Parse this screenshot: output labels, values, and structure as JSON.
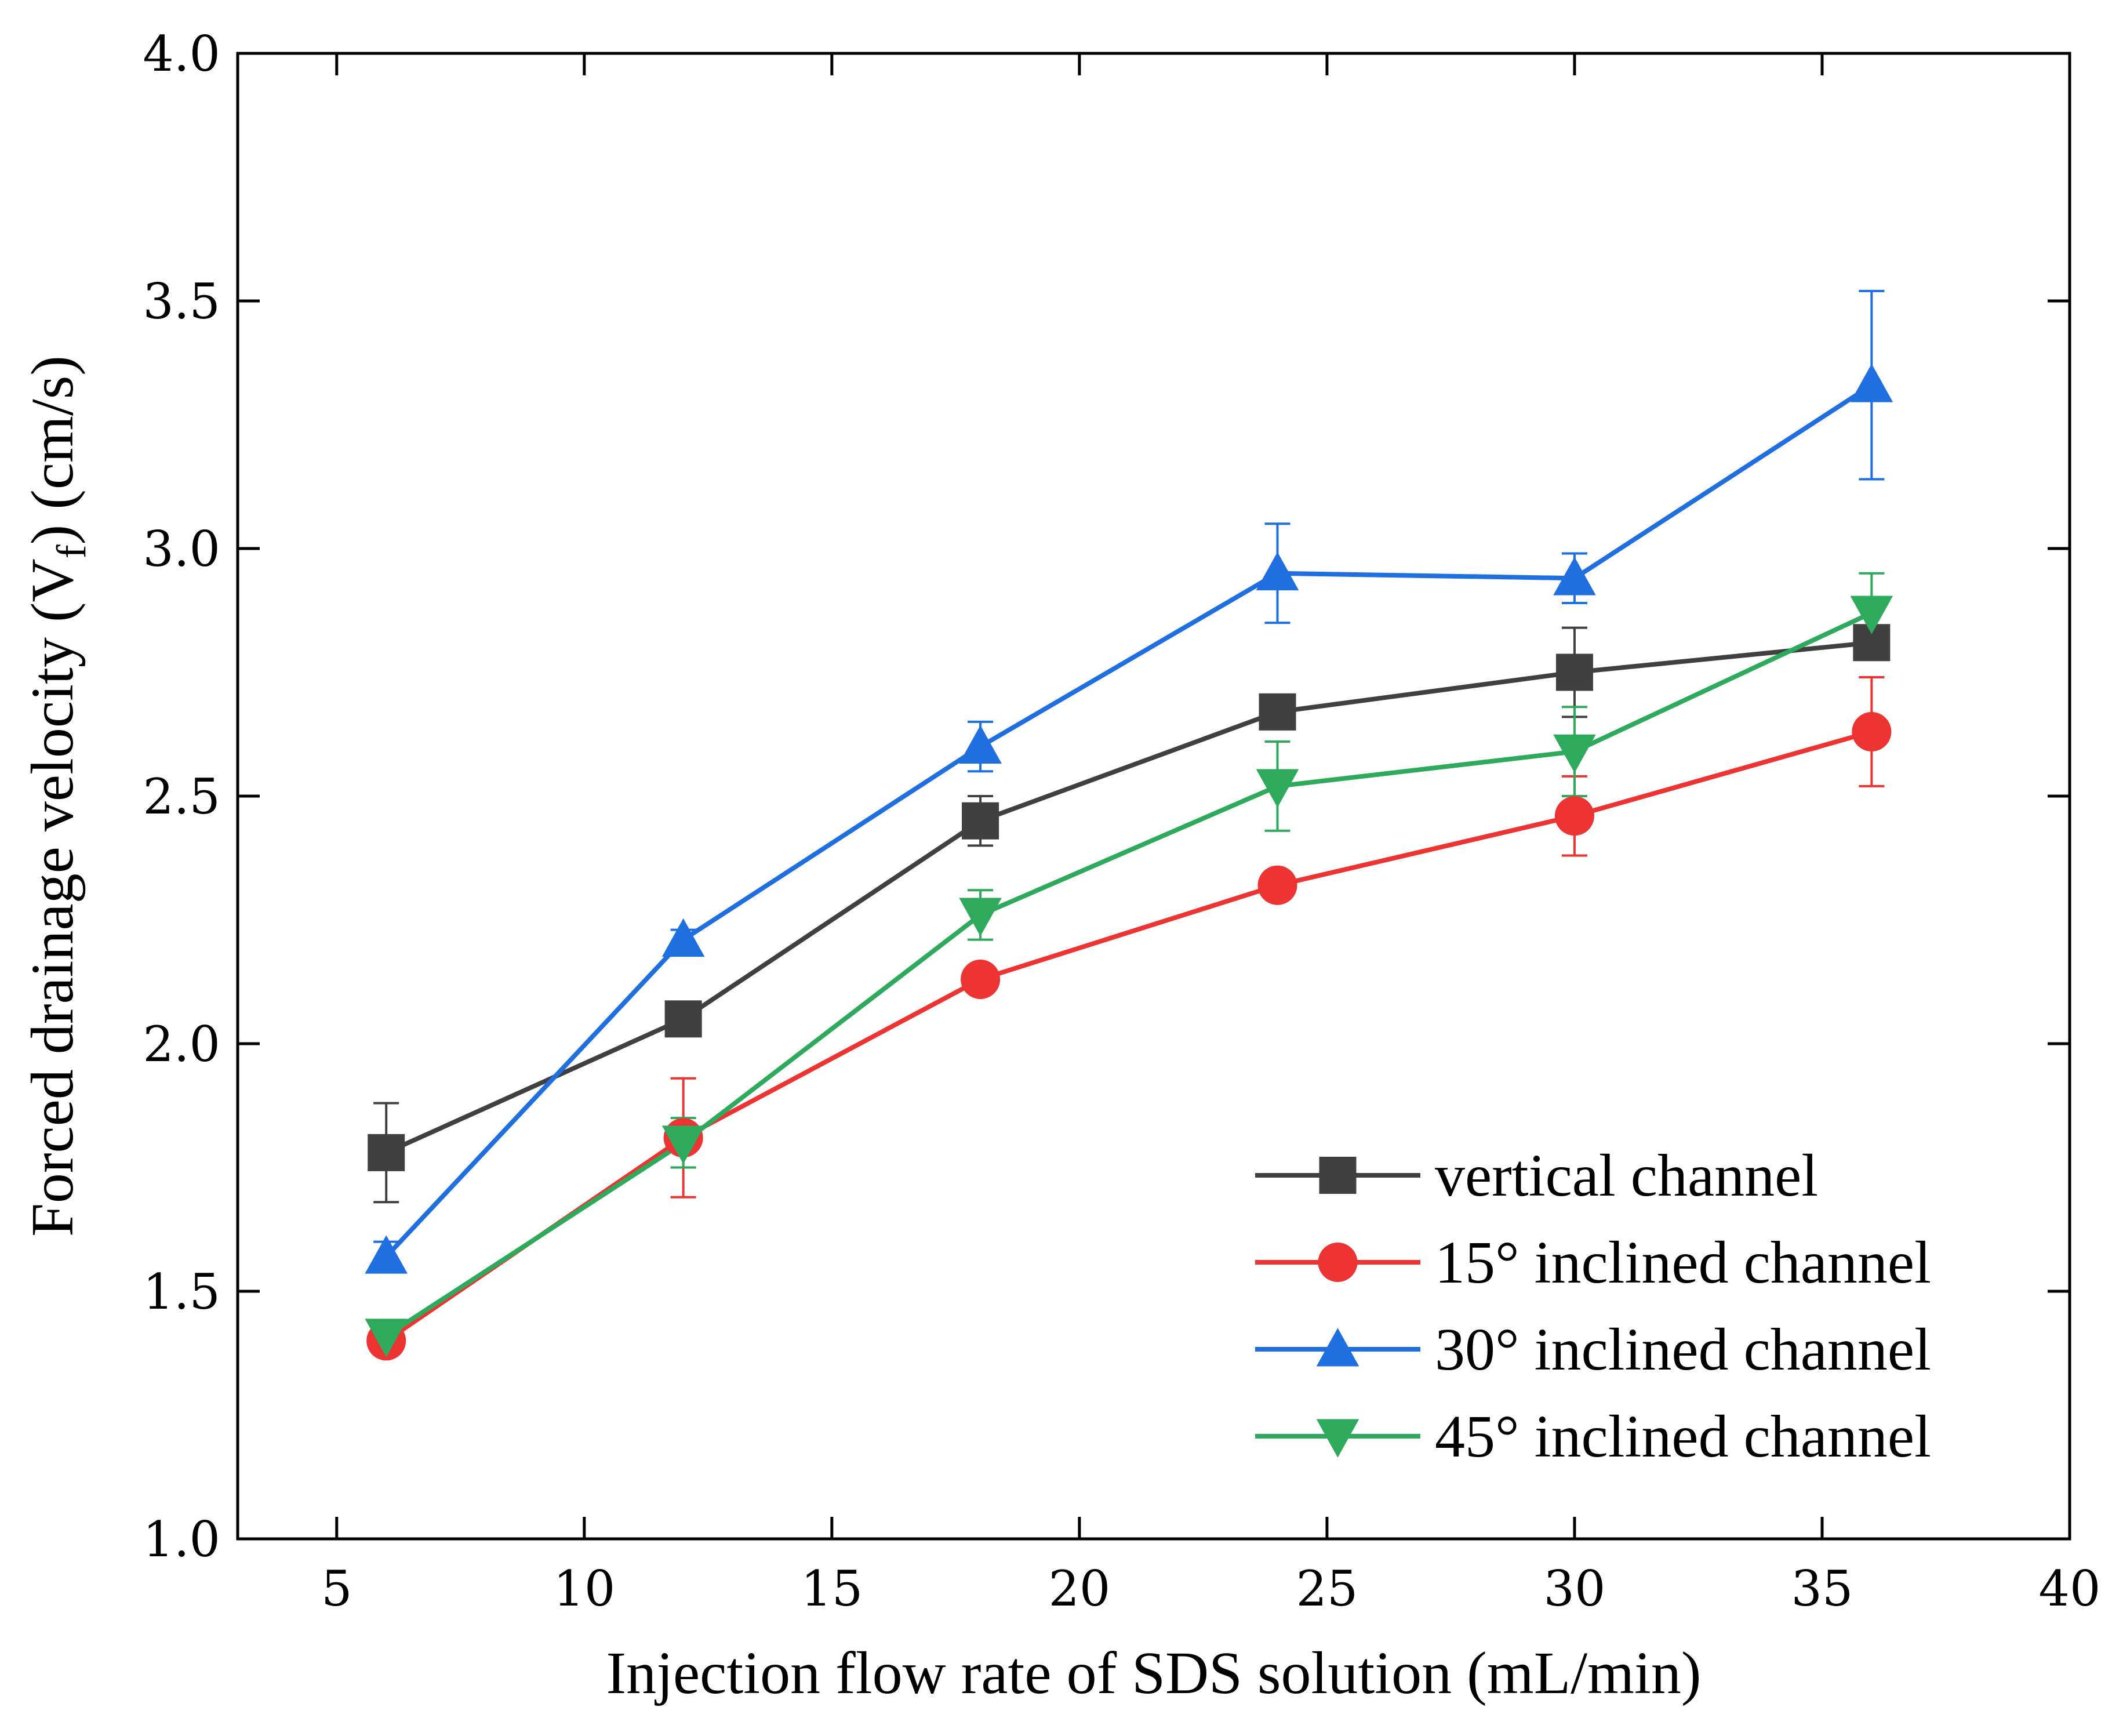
{
  "chart_data": {
    "type": "line",
    "xlabel": "Injection flow rate of SDS solution (mL/min)",
    "ylabel_main": "Forced drainage velocity (V",
    "ylabel_sub": "f",
    "ylabel_tail": ") (cm/s)",
    "xlim": [
      3,
      40
    ],
    "ylim": [
      1.0,
      4.0
    ],
    "x_ticks": [
      5,
      10,
      15,
      20,
      25,
      30,
      35,
      40
    ],
    "x_tick_labels": [
      "5",
      "10",
      "15",
      "20",
      "25",
      "30",
      "35",
      "40"
    ],
    "y_ticks": [
      1.0,
      1.5,
      2.0,
      2.5,
      3.0,
      3.5,
      4.0
    ],
    "y_tick_labels": [
      "1.0",
      "1.5",
      "2.0",
      "2.5",
      "3.0",
      "3.5",
      "4.0"
    ],
    "grid": false,
    "legend_position": "bottom-right",
    "x": [
      6,
      12,
      18,
      24,
      30,
      36
    ],
    "series": [
      {
        "name": "vertical channel",
        "color": "#404040",
        "marker": "square",
        "values": [
          1.78,
          2.05,
          2.45,
          2.67,
          2.75,
          2.81
        ],
        "errors": [
          0.1,
          0.01,
          0.05,
          0.02,
          0.09,
          0.02
        ]
      },
      {
        "name": "15° inclined channel",
        "color": "#ee3333",
        "marker": "circle",
        "values": [
          1.4,
          1.81,
          2.13,
          2.32,
          2.46,
          2.63
        ],
        "errors": [
          0.02,
          0.12,
          0.02,
          0.02,
          0.08,
          0.11
        ]
      },
      {
        "name": "30° inclined channel",
        "color": "#1f6fe0",
        "marker": "triangle-up",
        "values": [
          1.57,
          2.21,
          2.6,
          2.95,
          2.94,
          3.33
        ],
        "errors": [
          0.03,
          0.02,
          0.05,
          0.1,
          0.05,
          0.19
        ]
      },
      {
        "name": "45° inclined channel",
        "color": "#2eaa5c",
        "marker": "triangle-down",
        "values": [
          1.41,
          1.8,
          2.26,
          2.52,
          2.59,
          2.87
        ],
        "errors": [
          0.02,
          0.05,
          0.05,
          0.09,
          0.09,
          0.08
        ]
      }
    ]
  }
}
